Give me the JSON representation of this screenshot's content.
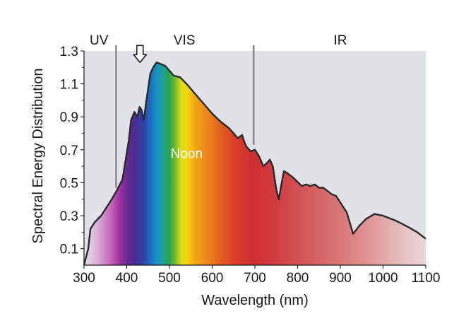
{
  "chart_data": {
    "type": "area",
    "xlabel": "Wavelength (nm)",
    "ylabel": "Spectral Energy Distribution",
    "xlim": [
      300,
      1100
    ],
    "ylim": [
      0,
      1.3
    ],
    "x_ticks": [
      "300",
      "400",
      "500",
      "600",
      "700",
      "800",
      "900",
      "1000",
      "1100"
    ],
    "y_ticks": [
      "0.1",
      "0.3",
      "0.5",
      "0.7",
      "0.9",
      "1.1",
      "1.3"
    ],
    "region_labels": [
      {
        "label": "UV",
        "x": 335
      },
      {
        "label": "VIS",
        "x": 535
      },
      {
        "label": "IR",
        "x": 900
      }
    ],
    "region_dividers": [
      {
        "x": 375,
        "y_from": 0.47
      },
      {
        "x": 697,
        "y_from": 0.73
      }
    ],
    "annotation": {
      "text": "Noon",
      "x": 540,
      "y": 0.68
    },
    "arrow": {
      "x": 431,
      "y": 1.23
    },
    "grid": false,
    "colors": {
      "plot_background": "#dfe3e8",
      "curve_outline": "#2a2a2a",
      "divider": "#8c8c8c"
    },
    "x": [
      300,
      310,
      315,
      325,
      340,
      355,
      365,
      378,
      390,
      395,
      405,
      410,
      418,
      425,
      430,
      435,
      440,
      445,
      455,
      462,
      470,
      480,
      490,
      500,
      510,
      525,
      540,
      560,
      580,
      600,
      620,
      640,
      660,
      670,
      675,
      680,
      690,
      700,
      710,
      720,
      728,
      735,
      742,
      750,
      756,
      762,
      768,
      775,
      790,
      810,
      820,
      830,
      840,
      850,
      860,
      870,
      880,
      890,
      900,
      915,
      930,
      945,
      960,
      980,
      1000,
      1030,
      1060,
      1080,
      1100
    ],
    "y": [
      0.0,
      0.1,
      0.22,
      0.26,
      0.3,
      0.36,
      0.4,
      0.46,
      0.52,
      0.6,
      0.76,
      0.88,
      0.93,
      0.9,
      0.96,
      0.94,
      0.88,
      0.98,
      1.16,
      1.2,
      1.23,
      1.22,
      1.21,
      1.18,
      1.15,
      1.14,
      1.1,
      1.04,
      0.98,
      0.92,
      0.87,
      0.83,
      0.77,
      0.79,
      0.75,
      0.72,
      0.69,
      0.7,
      0.66,
      0.6,
      0.62,
      0.64,
      0.6,
      0.46,
      0.4,
      0.49,
      0.57,
      0.56,
      0.53,
      0.48,
      0.49,
      0.48,
      0.49,
      0.47,
      0.47,
      0.45,
      0.43,
      0.42,
      0.38,
      0.32,
      0.19,
      0.24,
      0.28,
      0.31,
      0.3,
      0.27,
      0.23,
      0.2,
      0.16
    ],
    "spectrum_gradient": [
      {
        "nm": 300,
        "color": "#e9dcea"
      },
      {
        "nm": 330,
        "color": "#d9b1d8"
      },
      {
        "nm": 360,
        "color": "#c76cbe"
      },
      {
        "nm": 385,
        "color": "#9b2e9e"
      },
      {
        "nm": 405,
        "color": "#5a2a8e"
      },
      {
        "nm": 420,
        "color": "#4b2c93"
      },
      {
        "nm": 440,
        "color": "#2f43a4"
      },
      {
        "nm": 455,
        "color": "#1a6cc0"
      },
      {
        "nm": 470,
        "color": "#1a92c6"
      },
      {
        "nm": 485,
        "color": "#1aa191"
      },
      {
        "nm": 500,
        "color": "#2ba34b"
      },
      {
        "nm": 515,
        "color": "#7cbe2c"
      },
      {
        "nm": 528,
        "color": "#dddd16"
      },
      {
        "nm": 540,
        "color": "#f5d60e"
      },
      {
        "nm": 560,
        "color": "#f2a716"
      },
      {
        "nm": 585,
        "color": "#ee8a1e"
      },
      {
        "nm": 615,
        "color": "#e4641f"
      },
      {
        "nm": 650,
        "color": "#d9412a"
      },
      {
        "nm": 690,
        "color": "#cf2f30"
      },
      {
        "nm": 740,
        "color": "#cf3a3f"
      },
      {
        "nm": 820,
        "color": "#d35959"
      },
      {
        "nm": 900,
        "color": "#d97777"
      },
      {
        "nm": 980,
        "color": "#e09c9c"
      },
      {
        "nm": 1050,
        "color": "#e7c2c3"
      },
      {
        "nm": 1100,
        "color": "#ebd5d7"
      }
    ]
  }
}
